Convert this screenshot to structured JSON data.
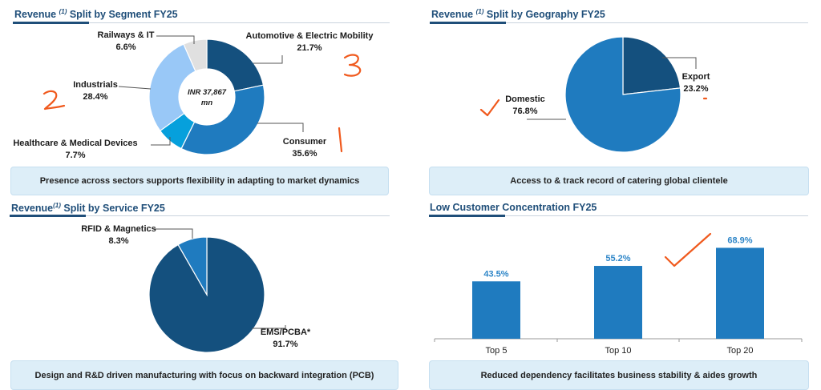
{
  "panels": {
    "segment": {
      "title_prefix": "Revenue ",
      "title_sup": "(1)",
      "title_suffix": " Split by Segment FY25",
      "center_line1": "INR 37,867",
      "center_line2": "mn",
      "caption": "Presence across sectors supports flexibility in adapting to market dynamics"
    },
    "geography": {
      "title_prefix": "Revenue ",
      "title_sup": "(1)",
      "title_suffix": " Split by Geography FY25",
      "caption": "Access to & track record of catering global clientele"
    },
    "service": {
      "title_prefix": "Revenue",
      "title_sup": "(1)",
      "title_suffix": " Split by Service FY25",
      "caption": "Design and R&D driven manufacturing with focus on backward integration (PCB)"
    },
    "customer": {
      "title": "Low Customer Concentration FY25",
      "caption": "Reduced dependency facilitates business stability & aides growth"
    }
  },
  "chart_data": [
    {
      "type": "pie",
      "donut": true,
      "title": "Revenue (1) Split by Segment FY25",
      "unit": "%",
      "slices": [
        {
          "name": "Automotive & Electric Mobility",
          "value": 21.7,
          "label": "21.7%",
          "color": "#14507e"
        },
        {
          "name": "Consumer",
          "value": 35.6,
          "label": "35.6%",
          "color": "#1f7bbf"
        },
        {
          "name": "Healthcare & Medical Devices",
          "value": 7.7,
          "label": "7.7%",
          "color": "#06a0dc"
        },
        {
          "name": "Industrials",
          "value": 28.4,
          "label": "28.4%",
          "color": "#99c8f7"
        },
        {
          "name": "Railways & IT",
          "value": 6.6,
          "label": "6.6%",
          "color": "#e0e0e0"
        }
      ]
    },
    {
      "type": "pie",
      "title": "Revenue (1) Split by Geography FY25",
      "unit": "%",
      "slices": [
        {
          "name": "Export",
          "value": 23.2,
          "label": "23.2%",
          "color": "#14507e"
        },
        {
          "name": "Domestic",
          "value": 76.8,
          "label": "76.8%",
          "color": "#1f7bbf"
        }
      ]
    },
    {
      "type": "pie",
      "title": "Revenue (1) Split by Service FY25",
      "unit": "%",
      "slices": [
        {
          "name": "EMS/PCBA*",
          "value": 91.7,
          "label": "91.7%",
          "color": "#14507e"
        },
        {
          "name": "RFID & Magnetics",
          "value": 8.3,
          "label": "8.3%",
          "color": "#1f7bbf"
        }
      ]
    },
    {
      "type": "bar",
      "title": "Low Customer Concentration FY25",
      "categories": [
        "Top 5",
        "Top 10",
        "Top 20"
      ],
      "values": [
        43.5,
        55.2,
        68.9
      ],
      "labels": [
        "43.5%",
        "55.2%",
        "68.9%"
      ],
      "ylim": [
        0,
        80
      ],
      "color": "#1f7bbf",
      "label_color": "#2e86c8",
      "grid": false
    }
  ],
  "annotations": {
    "color": "#f05a1e",
    "marks": [
      "2",
      "3",
      "1",
      "check",
      "check",
      "dot"
    ]
  }
}
